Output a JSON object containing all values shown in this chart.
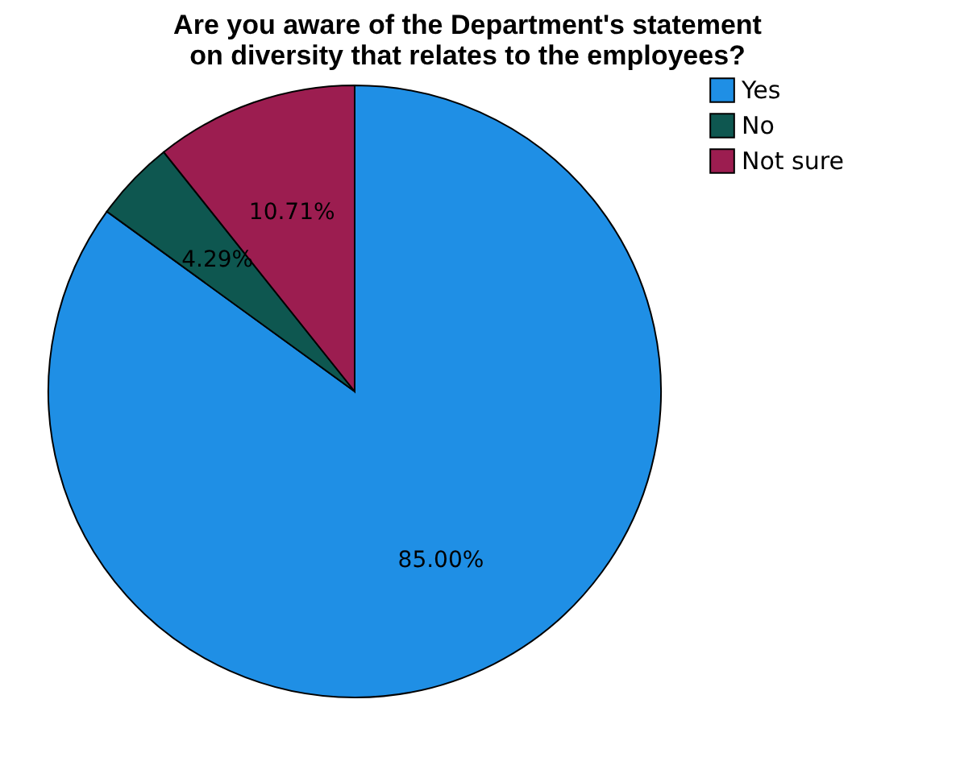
{
  "chart_data": {
    "type": "pie",
    "title": "Are you aware of the Department's statement on diversity that relates to the employees?",
    "categories": [
      "Yes",
      "No",
      "Not sure"
    ],
    "values": [
      85.0,
      4.29,
      10.71
    ],
    "value_labels": [
      "85.00%",
      "4.29%",
      "10.71%"
    ],
    "colors": [
      "#1f8fe5",
      "#0e5750",
      "#9c1d50"
    ],
    "legend": "top right"
  }
}
